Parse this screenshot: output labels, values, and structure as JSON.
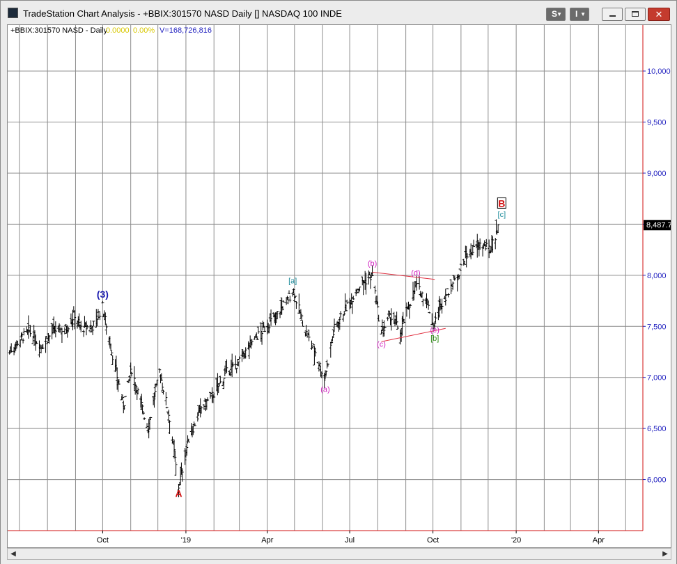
{
  "window": {
    "title": "TradeStation Chart Analysis - +BBIX:301570 NASD Daily [] NASDAQ 100 INDE",
    "buttons": {
      "s_label": "S",
      "i_label": "I",
      "minimize": "minimize",
      "maximize": "maximize",
      "close": "close"
    }
  },
  "header": {
    "symbol": "+BBIX:301570 NASD - Daily",
    "change": "0.0000",
    "change_pct": "0.00%",
    "volume": "V=168,726,816"
  },
  "colors": {
    "price_axis": "#1f1fbf",
    "grid": "#8c8c8c",
    "bars": "#000000",
    "wave_red": "#d01010",
    "wave_blue": "#1a1aaf",
    "wave_teal": "#1a8a9a",
    "wave_magenta": "#d020c0",
    "wave_green": "#2a8a10",
    "trendline": "#e03040",
    "last_price_bg": "#000000"
  },
  "chart_data": {
    "type": "ohlc",
    "title": "",
    "ylim": [
      5500,
      10450
    ],
    "yticks": [
      6000,
      6500,
      7000,
      7500,
      8000,
      8500,
      9000,
      9500,
      10000
    ],
    "ytick_labels": [
      "6,000",
      "6,500",
      "7,000",
      "7,500",
      "8,000",
      "8,500",
      "9,000",
      "9,500",
      "10,000"
    ],
    "xlim": [
      "2018-06-18",
      "2020-05-20"
    ],
    "xticks": [
      "2018-10-01",
      "2019-01-01",
      "2019-04-01",
      "2019-07-01",
      "2019-10-01",
      "2020-01-01",
      "2020-04-01"
    ],
    "xtick_labels": [
      "Oct",
      "'19",
      "Apr",
      "Jul",
      "Oct",
      "'20",
      "Apr"
    ],
    "last_price": 8487.7,
    "last_price_label": "8,487.7",
    "series": [
      {
        "x": "2018-06-20",
        "y": 7250
      },
      {
        "x": "2018-07-02",
        "y": 7380
      },
      {
        "x": "2018-07-12",
        "y": 7450
      },
      {
        "x": "2018-07-25",
        "y": 7300
      },
      {
        "x": "2018-08-08",
        "y": 7460
      },
      {
        "x": "2018-08-22",
        "y": 7480
      },
      {
        "x": "2018-08-31",
        "y": 7620
      },
      {
        "x": "2018-09-07",
        "y": 7480
      },
      {
        "x": "2018-09-20",
        "y": 7500
      },
      {
        "x": "2018-10-01",
        "y": 7690
      },
      {
        "x": "2018-10-10",
        "y": 7300
      },
      {
        "x": "2018-10-24",
        "y": 6720
      },
      {
        "x": "2018-11-02",
        "y": 7080
      },
      {
        "x": "2018-11-20",
        "y": 6500
      },
      {
        "x": "2018-12-03",
        "y": 7060
      },
      {
        "x": "2018-12-14",
        "y": 6600
      },
      {
        "x": "2018-12-24",
        "y": 5930
      },
      {
        "x": "2019-01-04",
        "y": 6400
      },
      {
        "x": "2019-01-18",
        "y": 6700
      },
      {
        "x": "2019-02-01",
        "y": 6840
      },
      {
        "x": "2019-02-15",
        "y": 7050
      },
      {
        "x": "2019-03-01",
        "y": 7150
      },
      {
        "x": "2019-03-15",
        "y": 7350
      },
      {
        "x": "2019-03-29",
        "y": 7480
      },
      {
        "x": "2019-04-12",
        "y": 7620
      },
      {
        "x": "2019-04-30",
        "y": 7850
      },
      {
        "x": "2019-05-13",
        "y": 7450
      },
      {
        "x": "2019-05-24",
        "y": 7250
      },
      {
        "x": "2019-06-03",
        "y": 6980
      },
      {
        "x": "2019-06-14",
        "y": 7480
      },
      {
        "x": "2019-06-28",
        "y": 7700
      },
      {
        "x": "2019-07-12",
        "y": 7900
      },
      {
        "x": "2019-07-26",
        "y": 8000
      },
      {
        "x": "2019-08-05",
        "y": 7420
      },
      {
        "x": "2019-08-15",
        "y": 7600
      },
      {
        "x": "2019-08-26",
        "y": 7450
      },
      {
        "x": "2019-09-12",
        "y": 7900
      },
      {
        "x": "2019-09-24",
        "y": 7750
      },
      {
        "x": "2019-10-02",
        "y": 7500
      },
      {
        "x": "2019-10-10",
        "y": 7720
      },
      {
        "x": "2019-10-25",
        "y": 7950
      },
      {
        "x": "2019-11-08",
        "y": 8200
      },
      {
        "x": "2019-11-22",
        "y": 8300
      },
      {
        "x": "2019-12-03",
        "y": 8250
      },
      {
        "x": "2019-12-13",
        "y": 8480
      }
    ],
    "annotations": [
      {
        "text": "(3)",
        "x": "2018-10-01",
        "y": 7780,
        "color": "#1a1aaf"
      },
      {
        "text": "A",
        "x": "2018-12-24",
        "y": 5830,
        "color": "#d01010"
      },
      {
        "text": "[a]",
        "x": "2019-04-29",
        "y": 7920,
        "color": "#1a8a9a"
      },
      {
        "text": "(a)",
        "x": "2019-06-04",
        "y": 6860,
        "color": "#d020c0"
      },
      {
        "text": "(b)",
        "x": "2019-07-26",
        "y": 8090,
        "color": "#d020c0"
      },
      {
        "text": "(c)",
        "x": "2019-08-05",
        "y": 7300,
        "color": "#d020c0"
      },
      {
        "text": "(d)",
        "x": "2019-09-12",
        "y": 8000,
        "color": "#d020c0"
      },
      {
        "text": "(e)",
        "x": "2019-10-03",
        "y": 7440,
        "color": "#d020c0"
      },
      {
        "text": "[b]",
        "x": "2019-10-03",
        "y": 7360,
        "color": "#2a8a10"
      },
      {
        "text": "[c]",
        "x": "2019-12-16",
        "y": 8570,
        "color": "#1a8a9a"
      },
      {
        "text": "B",
        "x": "2019-12-16",
        "y": 8670,
        "color": "#d01010",
        "boxed": true
      }
    ],
    "trendlines": [
      {
        "from": {
          "x": "2019-07-26",
          "y": 8030
        },
        "to": {
          "x": "2019-10-03",
          "y": 7960
        }
      },
      {
        "from": {
          "x": "2019-08-05",
          "y": 7350
        },
        "to": {
          "x": "2019-10-15",
          "y": 7480
        }
      }
    ]
  }
}
